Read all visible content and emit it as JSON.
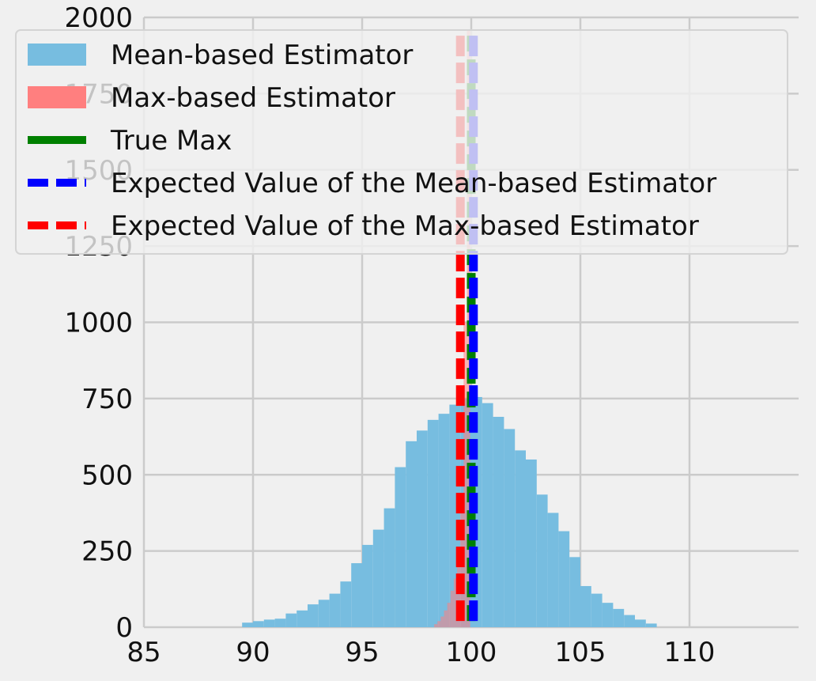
{
  "chart_data": {
    "type": "bar",
    "title": "",
    "xlabel": "",
    "ylabel": "",
    "xlim": [
      85,
      115
    ],
    "ylim": [
      0,
      2000
    ],
    "grid": true,
    "legend_position": "top-left",
    "xticks": [
      85,
      90,
      95,
      100,
      105,
      110
    ],
    "yticks": [
      0,
      250,
      500,
      750,
      1000,
      1250,
      1500,
      1750,
      2000
    ],
    "histograms": [
      {
        "name": "Mean-based Estimator",
        "color": "#77bde0",
        "bins": [
          {
            "x0": 89.5,
            "x1": 90.0,
            "count": 15
          },
          {
            "x0": 90.0,
            "x1": 90.5,
            "count": 20
          },
          {
            "x0": 90.5,
            "x1": 91.0,
            "count": 25
          },
          {
            "x0": 91.0,
            "x1": 91.5,
            "count": 28
          },
          {
            "x0": 91.5,
            "x1": 92.0,
            "count": 45
          },
          {
            "x0": 92.0,
            "x1": 92.5,
            "count": 55
          },
          {
            "x0": 92.5,
            "x1": 93.0,
            "count": 75
          },
          {
            "x0": 93.0,
            "x1": 93.5,
            "count": 90
          },
          {
            "x0": 93.5,
            "x1": 94.0,
            "count": 110
          },
          {
            "x0": 94.0,
            "x1": 94.5,
            "count": 150
          },
          {
            "x0": 94.5,
            "x1": 95.0,
            "count": 210
          },
          {
            "x0": 95.0,
            "x1": 95.5,
            "count": 270
          },
          {
            "x0": 95.5,
            "x1": 96.0,
            "count": 320
          },
          {
            "x0": 96.0,
            "x1": 96.5,
            "count": 390
          },
          {
            "x0": 96.5,
            "x1": 97.0,
            "count": 525
          },
          {
            "x0": 97.0,
            "x1": 97.5,
            "count": 610
          },
          {
            "x0": 97.5,
            "x1": 98.0,
            "count": 645
          },
          {
            "x0": 98.0,
            "x1": 98.5,
            "count": 680
          },
          {
            "x0": 98.5,
            "x1": 99.0,
            "count": 700
          },
          {
            "x0": 99.0,
            "x1": 99.5,
            "count": 730
          },
          {
            "x0": 99.5,
            "x1": 100.0,
            "count": 750
          },
          {
            "x0": 100.0,
            "x1": 100.5,
            "count": 755
          },
          {
            "x0": 100.5,
            "x1": 101.0,
            "count": 735
          },
          {
            "x0": 101.0,
            "x1": 101.5,
            "count": 690
          },
          {
            "x0": 101.5,
            "x1": 102.0,
            "count": 650
          },
          {
            "x0": 102.0,
            "x1": 102.5,
            "count": 580
          },
          {
            "x0": 102.5,
            "x1": 103.0,
            "count": 550
          },
          {
            "x0": 103.0,
            "x1": 103.5,
            "count": 435
          },
          {
            "x0": 103.5,
            "x1": 104.0,
            "count": 375
          },
          {
            "x0": 104.0,
            "x1": 104.5,
            "count": 315
          },
          {
            "x0": 104.5,
            "x1": 105.0,
            "count": 230
          },
          {
            "x0": 105.0,
            "x1": 105.5,
            "count": 135
          },
          {
            "x0": 105.5,
            "x1": 106.0,
            "count": 110
          },
          {
            "x0": 106.0,
            "x1": 106.5,
            "count": 80
          },
          {
            "x0": 106.5,
            "x1": 107.0,
            "count": 60
          },
          {
            "x0": 107.0,
            "x1": 107.5,
            "count": 40
          },
          {
            "x0": 107.5,
            "x1": 108.0,
            "count": 25
          },
          {
            "x0": 108.0,
            "x1": 108.5,
            "count": 12
          }
        ]
      },
      {
        "name": "Max-based Estimator",
        "color": "#ff7f7f",
        "bins": [
          {
            "x0": 98.3,
            "x1": 98.45,
            "count": 10
          },
          {
            "x0": 98.45,
            "x1": 98.6,
            "count": 20
          },
          {
            "x0": 98.6,
            "x1": 98.75,
            "count": 35
          },
          {
            "x0": 98.75,
            "x1": 98.9,
            "count": 55
          },
          {
            "x0": 98.9,
            "x1": 99.05,
            "count": 80
          },
          {
            "x0": 99.05,
            "x1": 99.2,
            "count": 120
          },
          {
            "x0": 99.2,
            "x1": 99.35,
            "count": 160
          },
          {
            "x0": 99.35,
            "x1": 99.5,
            "count": 230
          },
          {
            "x0": 99.5,
            "x1": 99.65,
            "count": 415
          },
          {
            "x0": 99.65,
            "x1": 99.8,
            "count": 1000
          },
          {
            "x0": 99.8,
            "x1": 99.95,
            "count": 1960
          }
        ]
      }
    ],
    "lines": [
      {
        "name": "True Max",
        "x": 100.0,
        "color": "#008000",
        "style": "solid"
      },
      {
        "name": "Expected Value of the Mean-based Estimator",
        "x": 100.1,
        "color": "#0000ff",
        "style": "dashed"
      },
      {
        "name": "Expected Value of the Max-based Estimator",
        "x": 99.5,
        "color": "#ff0000",
        "style": "dashed"
      }
    ]
  }
}
